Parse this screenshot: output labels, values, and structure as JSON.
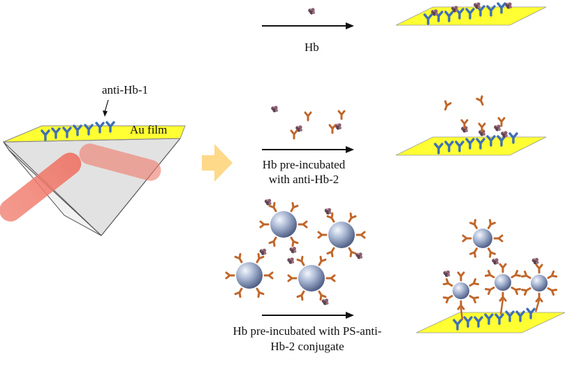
{
  "labels": {
    "hb": "Hb",
    "anti_hb_1": "anti-Hb-1",
    "au_film": "Au film",
    "pre_incubated_line1": "Hb pre-incubated",
    "pre_incubated_line2": "with anti-Hb-2",
    "ps_line1": "Hb pre-incubated with PS-anti-",
    "ps_line2": "Hb-2 conjugate"
  },
  "colors": {
    "gold_film": "#ffff33",
    "capture_antibody": "#3f6fb5",
    "detection_antibody": "#c0662a",
    "laser_beam": "#f08070",
    "prism": "#d9d9d9",
    "big_arrow": "#ffd98a",
    "bead": "#8a9cc0",
    "hemoglobin": "#6a4a5a"
  },
  "icons": {
    "capture_antibody": "y-shaped-antibody-blue",
    "detection_antibody": "y-shaped-antibody-orange",
    "hemoglobin": "protein-cluster",
    "bead": "polystyrene-sphere"
  }
}
